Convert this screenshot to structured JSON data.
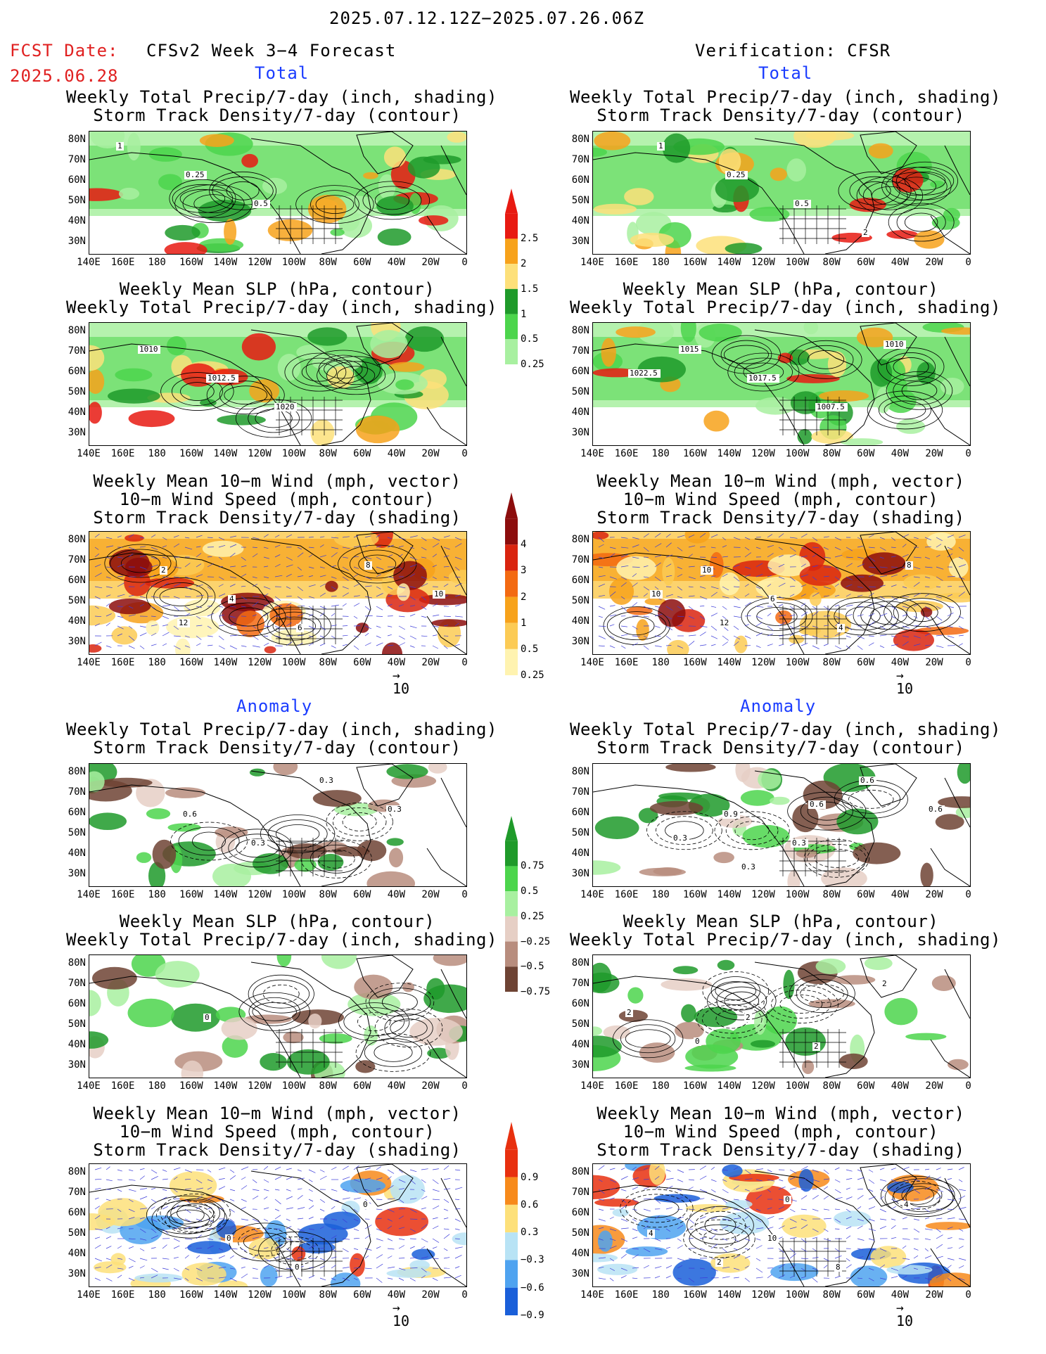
{
  "header": {
    "date_range": "2025.07.12.12Z−2025.07.26.06Z",
    "fcst_label": "FCST Date:",
    "fcst_date": "2025.06.28",
    "left_title": "CFSv2 Week 3−4 Forecast",
    "right_title": "Verification: CFSR"
  },
  "sections": {
    "total": "Total",
    "anomaly": "Anomaly"
  },
  "titles": {
    "precip_storm": [
      "Weekly Total Precip/7-day (inch, shading)",
      "Storm Track Density/7-day (contour)"
    ],
    "slp_precip": [
      "Weekly Mean SLP (hPa, contour)",
      "Weekly Total Precip/7-day (inch, shading)"
    ],
    "wind": [
      "Weekly Mean 10−m Wind (mph, vector)",
      "10−m Wind Speed (mph, contour)",
      "Storm Track Density/7-day (shading)"
    ]
  },
  "axes": {
    "lat_labels": [
      "80N",
      "70N",
      "60N",
      "50N",
      "40N",
      "30N"
    ],
    "lon_labels": [
      "140E",
      "160E",
      "180",
      "160W",
      "140W",
      "120W",
      "100W",
      "80W",
      "60W",
      "40W",
      "20W",
      "0"
    ]
  },
  "colorbars": {
    "precip_total": {
      "labels": [
        "2.5",
        "2",
        "1.5",
        "1",
        "0.5",
        "0.25"
      ],
      "colors": [
        "#e81a12",
        "#f7a21b",
        "#fde07a",
        "#1f9a2a",
        "#4cd54c",
        "#a8f0a0"
      ]
    },
    "storm_total": {
      "labels": [
        "4",
        "3",
        "2",
        "1",
        "0.5",
        "0.25"
      ],
      "colors": [
        "#8c0d0d",
        "#d9240f",
        "#f36a12",
        "#f7a21b",
        "#fccb55",
        "#fff3b0"
      ]
    },
    "precip_anom": {
      "labels": [
        "0.75",
        "0.5",
        "0.25",
        "−0.25",
        "−0.5",
        "−0.75"
      ],
      "colors": [
        "#1f9a2a",
        "#4cd54c",
        "#a8f0a0",
        "#e6cfc5",
        "#b88d7e",
        "#6e4334"
      ]
    },
    "storm_anom": {
      "labels": [
        "0.9",
        "0.6",
        "0.3",
        "−0.3",
        "−0.6",
        "−0.9"
      ],
      "colors": [
        "#e8300f",
        "#f78a1b",
        "#fde07a",
        "#b8e3f5",
        "#4fa3f0",
        "#1a5fd9"
      ]
    }
  },
  "vector_ref": "10",
  "contour_labels": {
    "fc_precip_total": [
      "1",
      "0.25",
      "0.5"
    ],
    "obs_precip_total": [
      "1",
      "0.25",
      "0.5",
      "2"
    ],
    "fc_slp_total": [
      "1010",
      "1012.5",
      "1020"
    ],
    "obs_slp_total": [
      "1015",
      "1017.5",
      "1007.5",
      "1010",
      "1022.5"
    ],
    "fc_wind_total": [
      "2",
      "4",
      "6",
      "8",
      "10",
      "12"
    ],
    "obs_wind_total": [
      "10",
      "6",
      "4",
      "8",
      "10",
      "12"
    ],
    "fc_precip_anom": [
      "0.6",
      "0.3",
      "0.3",
      "0.3"
    ],
    "obs_precip_anom": [
      "0.9",
      "0.3",
      "0.6",
      "0.6",
      "0.3",
      "0.3",
      "0.6"
    ],
    "fc_slp_anom": [
      "0"
    ],
    "obs_slp_anom": [
      "2",
      "2",
      "2",
      "2",
      "0"
    ],
    "fc_wind_anom": [
      "0",
      "0",
      "0"
    ],
    "obs_wind_anom": [
      "10",
      "8",
      "4",
      "4",
      "2",
      "0"
    ]
  }
}
